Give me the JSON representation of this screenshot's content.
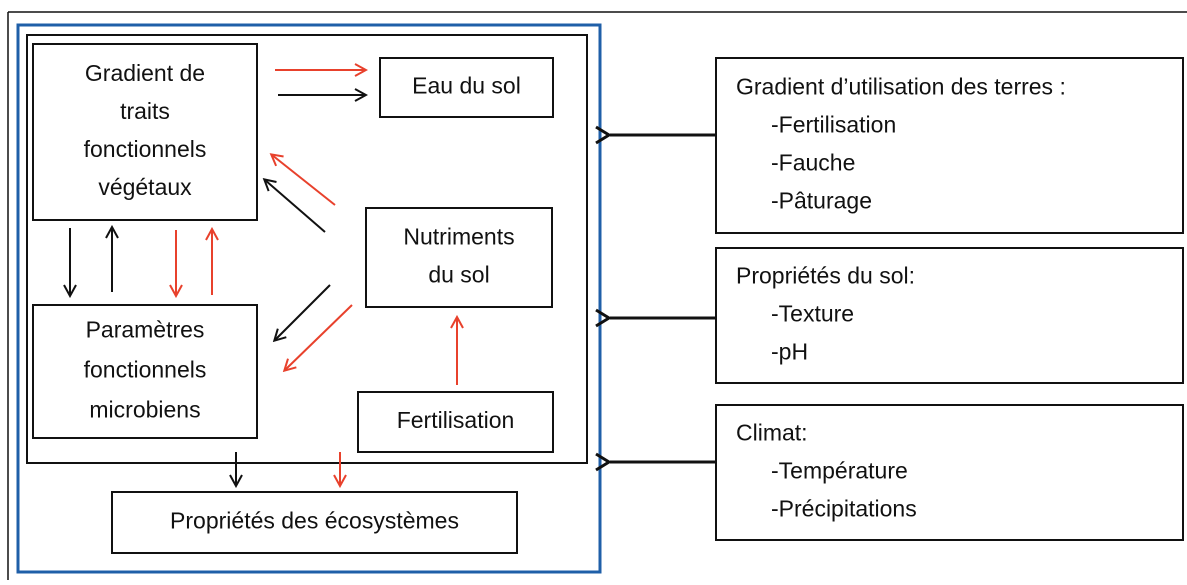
{
  "nodes": [
    {
      "lines": [
        "Gradient de",
        "traits",
        "fonctionnels",
        "végétaux"
      ]
    },
    {
      "lines": [
        "Eau du sol"
      ]
    },
    {
      "lines": [
        "Nutriments",
        "du sol"
      ]
    },
    {
      "lines": [
        "Paramètres",
        "fonctionnels",
        "microbiens"
      ]
    },
    {
      "lines": [
        "Fertilisation"
      ]
    },
    {
      "lines": [
        "Propriétés des écosystèmes"
      ]
    },
    {
      "lines": [
        "Gradient d’utilisation des terres :",
        "-Fertilisation",
        "-Fauche",
        "-Pâturage"
      ]
    },
    {
      "lines": [
        "Propriétés du sol:",
        "-Texture",
        "-pH"
      ]
    },
    {
      "lines": [
        "Climat:",
        "-Température",
        "-Précipitations"
      ]
    }
  ]
}
